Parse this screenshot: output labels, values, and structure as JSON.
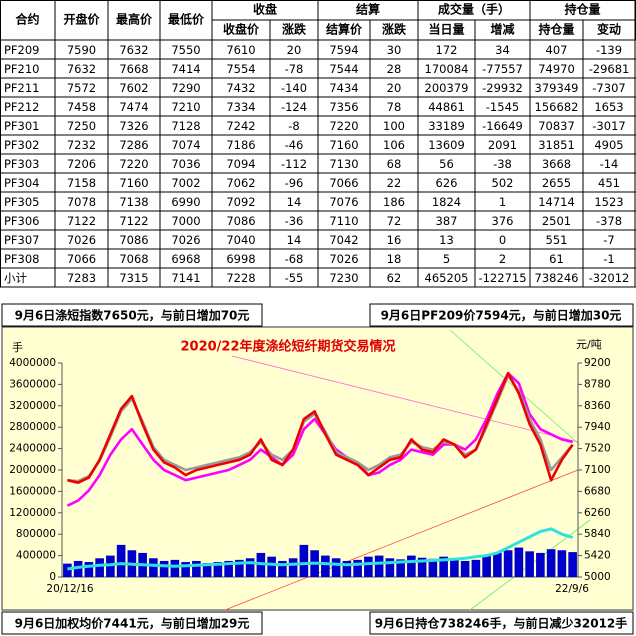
{
  "table": {
    "groups": [
      "收盘",
      "结算",
      "成交量（手）",
      "持仓量"
    ],
    "columns": [
      "合约",
      "开盘价",
      "最高价",
      "最低价",
      "收盘价",
      "涨跌",
      "结算价",
      "涨跌",
      "当日量",
      "增减",
      "持仓量",
      "变动"
    ],
    "rows": [
      [
        "PF209",
        7590,
        7632,
        7550,
        7610,
        20,
        7594,
        30,
        172,
        34,
        407,
        -139
      ],
      [
        "PF210",
        7632,
        7668,
        7414,
        7554,
        -78,
        7544,
        28,
        170084,
        -77557,
        74970,
        -29681
      ],
      [
        "PF211",
        7572,
        7602,
        7290,
        7432,
        -140,
        7434,
        20,
        200379,
        -29932,
        379349,
        -7307
      ],
      [
        "PF212",
        7458,
        7474,
        7210,
        7334,
        -124,
        7356,
        78,
        44861,
        -1545,
        156682,
        1653
      ],
      [
        "PF301",
        7250,
        7326,
        7128,
        7242,
        -8,
        7220,
        100,
        33189,
        -16649,
        70837,
        -3017
      ],
      [
        "PF302",
        7232,
        7286,
        7074,
        7186,
        -46,
        7160,
        106,
        13609,
        2091,
        31851,
        4905
      ],
      [
        "PF303",
        7206,
        7220,
        7036,
        7094,
        -112,
        7130,
        68,
        56,
        -38,
        3668,
        -14
      ],
      [
        "PF304",
        7158,
        7160,
        7002,
        7062,
        -96,
        7066,
        22,
        626,
        502,
        2655,
        451
      ],
      [
        "PF305",
        7078,
        7138,
        6990,
        7092,
        14,
        7076,
        186,
        1824,
        1,
        14714,
        1523
      ],
      [
        "PF306",
        7122,
        7122,
        7000,
        7086,
        -36,
        7110,
        72,
        387,
        376,
        2501,
        -378
      ],
      [
        "PF307",
        7026,
        7086,
        7026,
        7040,
        14,
        7042,
        16,
        13,
        0,
        551,
        -7
      ],
      [
        "PF308",
        7066,
        7068,
        6968,
        6998,
        -68,
        7026,
        18,
        5,
        2,
        61,
        -1
      ],
      [
        "小计",
        7283,
        7315,
        7141,
        7228,
        -55,
        7230,
        62,
        465205,
        -122715,
        738246,
        -32012
      ]
    ]
  },
  "notes": [
    "9月6日涤短指数7650元，与前日增加70元",
    "9月6日PF209价7594元，与前日增加30元",
    "9月6日加权均价7441元，与前日增加29元",
    "9月6日持仓738246手，与前日减少32012手"
  ],
  "chart_data": {
    "type": "combo",
    "title": "2020/22年度涤纶短纤期货交易情况",
    "y_label": "手",
    "y2_label": "元/吨",
    "categories": [
      "20/12/16",
      null,
      null,
      null,
      null,
      null,
      null,
      null,
      null,
      null,
      null,
      null,
      null,
      null,
      null,
      null,
      null,
      null,
      null,
      null,
      null,
      null,
      null,
      null,
      null,
      null,
      null,
      null,
      null,
      null,
      null,
      null,
      null,
      null,
      null,
      null,
      null,
      null,
      null,
      null,
      null,
      null,
      null,
      null,
      null,
      null,
      null,
      "22/9/6"
    ],
    "ylim": [
      0,
      4000000
    ],
    "yticks": [
      0,
      400000,
      800000,
      1200000,
      1600000,
      2000000,
      2400000,
      2800000,
      3200000,
      3600000,
      4000000
    ],
    "y2lim": [
      5000,
      9200
    ],
    "y2ticks": [
      5000,
      5420,
      5840,
      6260,
      6680,
      7100,
      7520,
      7940,
      8360,
      8780,
      9200
    ],
    "series": [
      {
        "type": "bar",
        "color": "#0000cc",
        "values": [
          250000,
          300000,
          280000,
          350000,
          400000,
          600000,
          500000,
          450000,
          350000,
          300000,
          320000,
          280000,
          300000,
          260000,
          280000,
          300000,
          320000,
          350000,
          450000,
          380000,
          300000,
          350000,
          600000,
          500000,
          400000,
          350000,
          300000,
          320000,
          380000,
          400000,
          350000,
          330000,
          400000,
          360000,
          340000,
          380000,
          350000,
          300000,
          320000,
          400000,
          450000,
          500000,
          550000,
          480000,
          450000,
          520000,
          500000,
          465205
        ]
      },
      {
        "type": "line",
        "color": "#33e0e0",
        "values": [
          150000,
          180000,
          200000,
          220000,
          230000,
          250000,
          240000,
          230000,
          220000,
          210000,
          200000,
          210000,
          220000,
          230000,
          240000,
          250000,
          260000,
          270000,
          250000,
          240000,
          230000,
          240000,
          250000,
          260000,
          250000,
          240000,
          230000,
          240000,
          250000,
          260000,
          270000,
          280000,
          290000,
          300000,
          310000,
          320000,
          330000,
          350000,
          380000,
          400000,
          450000,
          550000,
          650000,
          750000,
          850000,
          900000,
          800000,
          738246
        ]
      },
      {
        "type": "line",
        "axis": "y2",
        "color": "#ff00ff",
        "values": [
          6400,
          6500,
          6700,
          7000,
          7400,
          7700,
          7900,
          7600,
          7300,
          7100,
          7000,
          6900,
          6950,
          7000,
          7050,
          7100,
          7200,
          7300,
          7500,
          7350,
          7200,
          7400,
          7900,
          8100,
          7800,
          7500,
          7350,
          7250,
          7000,
          7050,
          7200,
          7300,
          7500,
          7450,
          7400,
          7600,
          7600,
          7500,
          7700,
          8100,
          8600,
          9000,
          8800,
          8200,
          7900,
          7800,
          7700,
          7650
        ]
      },
      {
        "type": "line",
        "axis": "y2",
        "color": "#999999",
        "values": [
          6900,
          6880,
          6980,
          7280,
          7750,
          8250,
          8500,
          8050,
          7550,
          7300,
          7200,
          7100,
          7150,
          7200,
          7250,
          7300,
          7350,
          7450,
          7650,
          7400,
          7300,
          7500,
          8050,
          8200,
          7850,
          7450,
          7350,
          7250,
          7100,
          7200,
          7350,
          7400,
          7650,
          7550,
          7500,
          7650,
          7600,
          7400,
          7500,
          7950,
          8450,
          8950,
          8650,
          8100,
          7700,
          7100,
          7350,
          7594
        ]
      },
      {
        "type": "line",
        "axis": "y2",
        "color": "#ee0000",
        "values": [
          6900,
          6850,
          6950,
          7300,
          7800,
          8300,
          8550,
          8000,
          7500,
          7250,
          7150,
          7000,
          7100,
          7150,
          7200,
          7250,
          7300,
          7400,
          7700,
          7300,
          7200,
          7500,
          8100,
          8250,
          7800,
          7400,
          7300,
          7200,
          7000,
          7150,
          7300,
          7350,
          7700,
          7500,
          7450,
          7700,
          7600,
          7350,
          7500,
          8000,
          8500,
          9000,
          8600,
          8000,
          7600,
          6900,
          7300,
          7594
        ]
      }
    ]
  }
}
